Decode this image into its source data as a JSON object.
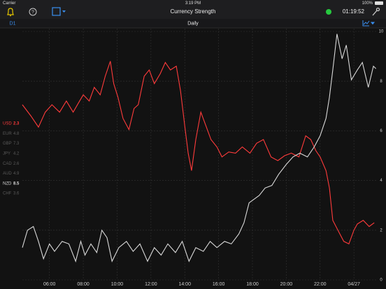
{
  "status_bar": {
    "carrier": "Carrier",
    "time": "3:19 PM",
    "battery": "100%"
  },
  "toolbar": {
    "title": "Currency Strength",
    "timer": "01:19:52"
  },
  "sub_bar": {
    "timeframe": "D1",
    "title": "Daily"
  },
  "chart_data": {
    "type": "line",
    "xlim": [
      4.4,
      25.4
    ],
    "xticks": [
      {
        "value": 6,
        "label": "06:00"
      },
      {
        "value": 8,
        "label": "08:00"
      },
      {
        "value": 10,
        "label": "10:00"
      },
      {
        "value": 12,
        "label": "12:00"
      },
      {
        "value": 14,
        "label": "14:00"
      },
      {
        "value": 16,
        "label": "16:00"
      },
      {
        "value": 18,
        "label": "18:00"
      },
      {
        "value": 20,
        "label": "20:00"
      },
      {
        "value": 22,
        "label": "22:00"
      },
      {
        "value": 24,
        "label": "04/27"
      }
    ],
    "ylim": [
      0,
      10
    ],
    "yticks": [
      0,
      2,
      4,
      6,
      8,
      10
    ],
    "grid": true,
    "series": [
      {
        "name": "USD",
        "color": "#ff3b3b",
        "current": 2.3,
        "x": [
          4.4,
          4.9,
          5.35,
          5.75,
          6.15,
          6.6,
          7.0,
          7.4,
          7.7,
          8.0,
          8.35,
          8.65,
          9.0,
          9.3,
          9.6,
          9.8,
          10.05,
          10.35,
          10.7,
          11.0,
          11.25,
          11.6,
          11.9,
          12.2,
          12.55,
          12.85,
          13.15,
          13.5,
          13.75,
          14.0,
          14.2,
          14.4,
          14.65,
          14.95,
          15.25,
          15.55,
          15.9,
          16.2,
          16.6,
          17.0,
          17.4,
          17.85,
          18.25,
          18.65,
          19.1,
          19.5,
          19.9,
          20.3,
          20.75,
          21.15,
          21.45,
          21.75,
          22.0,
          22.35,
          22.55,
          22.75,
          23.05,
          23.4,
          23.7,
          24.0,
          24.2,
          24.55,
          24.9,
          25.2
        ],
        "values": [
          7.05,
          6.6,
          6.15,
          6.75,
          7.05,
          6.75,
          7.2,
          6.75,
          7.1,
          7.45,
          7.2,
          7.75,
          7.45,
          8.2,
          8.8,
          7.9,
          7.35,
          6.5,
          6.05,
          6.9,
          7.05,
          8.2,
          8.45,
          7.9,
          8.3,
          8.75,
          8.45,
          8.6,
          7.6,
          6.2,
          5.1,
          4.4,
          5.65,
          6.75,
          6.2,
          5.65,
          5.35,
          4.95,
          5.15,
          5.1,
          5.35,
          5.1,
          5.5,
          5.65,
          4.95,
          4.8,
          5.0,
          5.1,
          4.95,
          5.8,
          5.65,
          5.2,
          4.95,
          4.4,
          3.7,
          2.4,
          2.0,
          1.55,
          1.45,
          2.0,
          2.25,
          2.4,
          2.15,
          2.3
        ]
      },
      {
        "name": "EUR",
        "color": "#5a5a5a",
        "current": 4.8
      },
      {
        "name": "GBP",
        "color": "#5a5a5a",
        "current": 7.3
      },
      {
        "name": "JPY",
        "color": "#5a5a5a",
        "current": 4.2
      },
      {
        "name": "CAD",
        "color": "#5a5a5a",
        "current": 2.6
      },
      {
        "name": "AUD",
        "color": "#5a5a5a",
        "current": 4.9
      },
      {
        "name": "NZD",
        "color": "#d8d8d8",
        "current": 8.5,
        "x": [
          4.4,
          4.7,
          5.05,
          5.35,
          5.65,
          6.0,
          6.3,
          6.75,
          7.15,
          7.55,
          7.85,
          8.1,
          8.45,
          8.8,
          9.1,
          9.4,
          9.7,
          10.1,
          10.55,
          10.95,
          11.35,
          11.8,
          12.2,
          12.6,
          13.0,
          13.45,
          13.85,
          14.25,
          14.65,
          15.1,
          15.5,
          15.9,
          16.35,
          16.75,
          17.2,
          17.5,
          17.8,
          18.1,
          18.4,
          18.75,
          19.15,
          19.55,
          20.0,
          20.4,
          20.8,
          21.25,
          21.65,
          22.0,
          22.35,
          22.55,
          22.75,
          23.0,
          23.3,
          23.55,
          23.85,
          24.2,
          24.5,
          24.85,
          25.15,
          25.3
        ],
        "values": [
          1.3,
          2.0,
          2.15,
          1.55,
          0.85,
          1.45,
          1.15,
          1.55,
          1.45,
          0.75,
          1.55,
          1.0,
          1.45,
          1.1,
          2.0,
          1.7,
          0.75,
          1.3,
          1.55,
          1.15,
          1.45,
          0.75,
          1.3,
          1.0,
          1.45,
          1.1,
          1.55,
          0.75,
          1.3,
          1.15,
          1.55,
          1.3,
          1.55,
          1.45,
          1.85,
          2.3,
          3.1,
          3.25,
          3.4,
          3.7,
          3.8,
          4.25,
          4.65,
          4.95,
          5.1,
          4.95,
          5.35,
          5.8,
          6.5,
          7.35,
          8.45,
          9.9,
          8.9,
          9.45,
          8.05,
          8.45,
          8.75,
          7.75,
          8.6,
          8.5
        ]
      },
      {
        "name": "CHF",
        "color": "#5a5a5a",
        "current": 3.6
      }
    ]
  }
}
